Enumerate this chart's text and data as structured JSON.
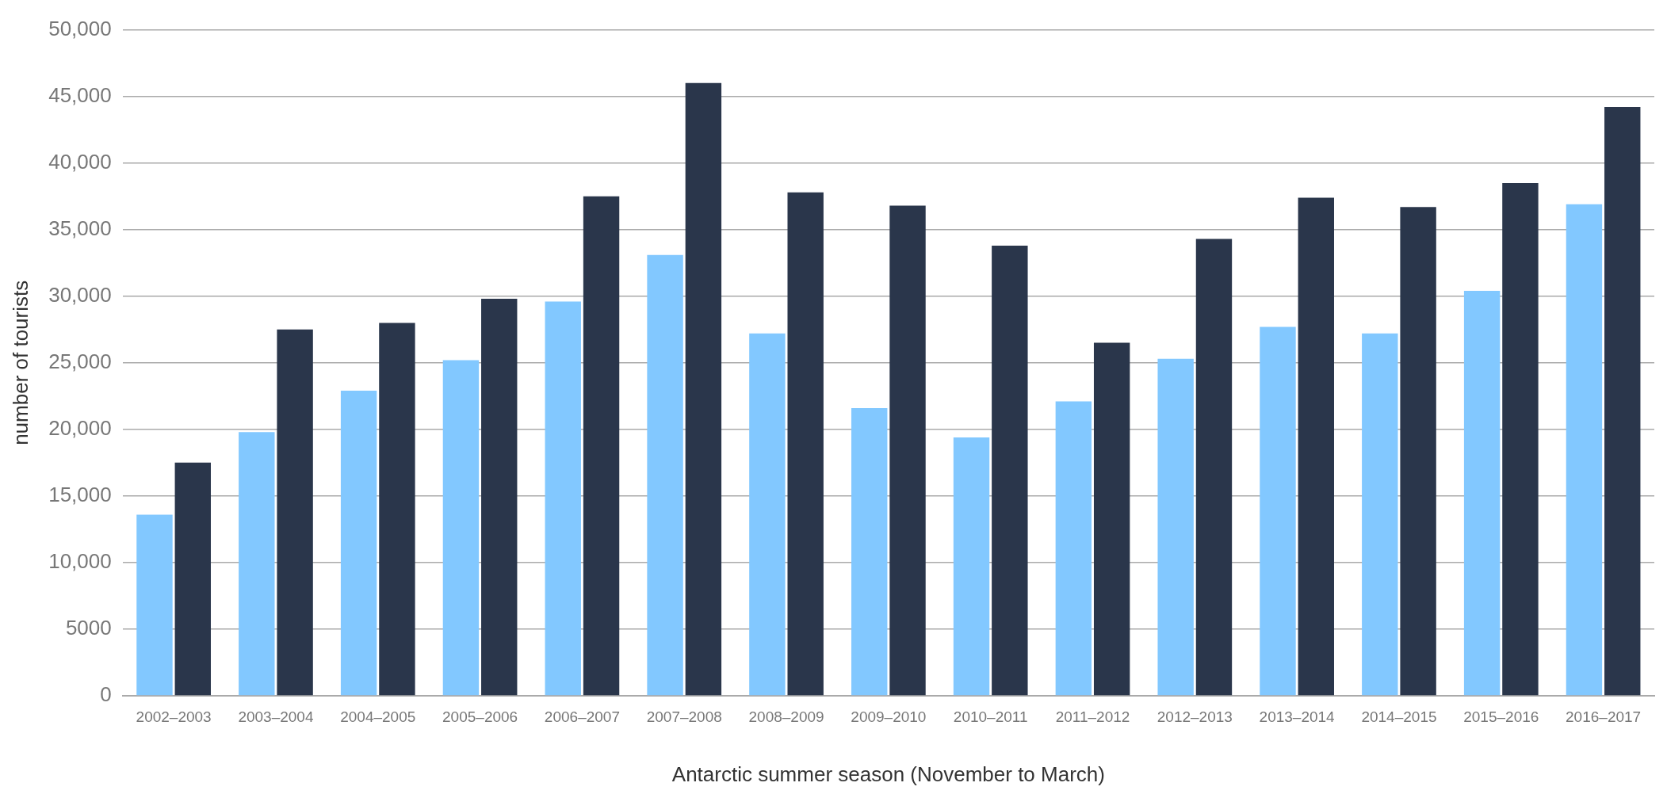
{
  "chart_data": {
    "type": "bar",
    "xlabel": "Antarctic summer season (November to March)",
    "ylabel": "number of tourists",
    "categories": [
      "2002–2003",
      "2003–2004",
      "2004–2005",
      "2005–2006",
      "2006–2007",
      "2007–2008",
      "2008–2009",
      "2009–2010",
      "2010–2011",
      "2011–2012",
      "2012–2013",
      "2013–2014",
      "2014–2015",
      "2015–2016",
      "2016–2017"
    ],
    "series": [
      {
        "color": "#82c8ff",
        "values": [
          13600,
          19800,
          22900,
          25200,
          29600,
          33100,
          27200,
          21600,
          19400,
          22100,
          25300,
          27700,
          27200,
          30400,
          36900
        ]
      },
      {
        "color": "#2a364b",
        "values": [
          17500,
          27500,
          28000,
          29800,
          37500,
          46000,
          37800,
          36800,
          33800,
          26500,
          34300,
          37400,
          36700,
          38500,
          44200
        ]
      }
    ],
    "ylim": [
      0,
      50000
    ],
    "yticks": [
      0,
      5000,
      {
        "value": 10000,
        "label": "10,000"
      },
      {
        "value": 15000,
        "label": "15,000"
      },
      {
        "value": 20000,
        "label": "20,000"
      },
      {
        "value": 25000,
        "label": "25,000"
      },
      {
        "value": 30000,
        "label": "30,000"
      },
      {
        "value": 35000,
        "label": "35,000"
      },
      {
        "value": 40000,
        "label": "40,000"
      },
      {
        "value": 45000,
        "label": "45,000"
      },
      {
        "value": 50000,
        "label": "50,000"
      }
    ],
    "grid": "y",
    "legend": false
  }
}
